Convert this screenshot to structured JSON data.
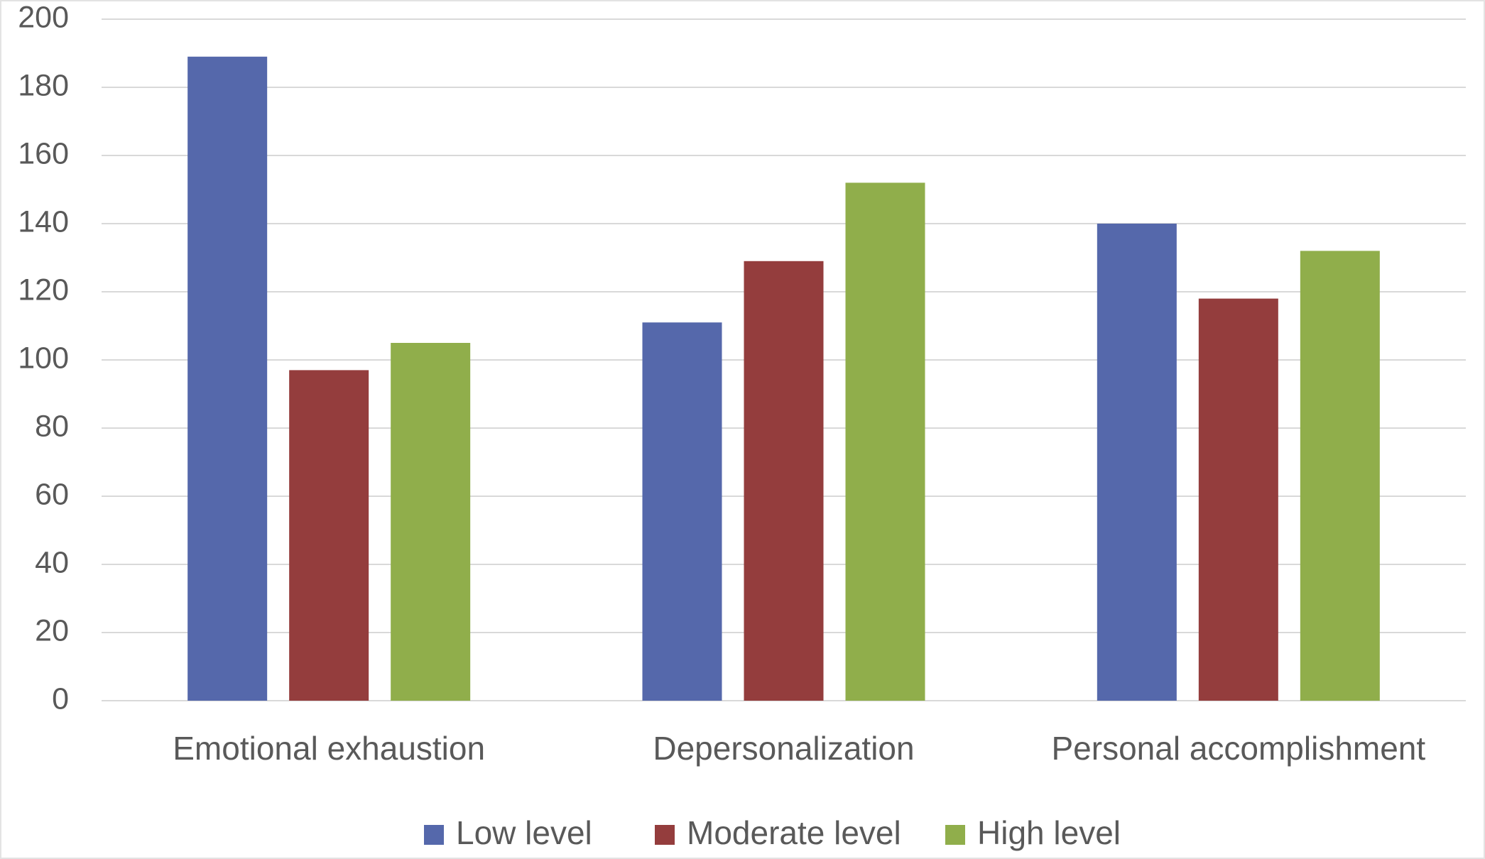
{
  "chart_data": {
    "type": "bar",
    "categories": [
      "Emotional exhaustion",
      "Depersonalization",
      "Personal accomplishment"
    ],
    "series": [
      {
        "name": "Low level",
        "color": "#5568ab",
        "values": [
          189,
          111,
          140
        ]
      },
      {
        "name": "Moderate level",
        "color": "#943d3d",
        "values": [
          97,
          129,
          118
        ]
      },
      {
        "name": "High level",
        "color": "#90ae4b",
        "values": [
          105,
          152,
          132
        ]
      }
    ],
    "ylim": [
      0,
      200
    ],
    "yticks": [
      0,
      20,
      40,
      60,
      80,
      100,
      120,
      140,
      160,
      180,
      200
    ],
    "grid": true,
    "legend": "bottom"
  }
}
